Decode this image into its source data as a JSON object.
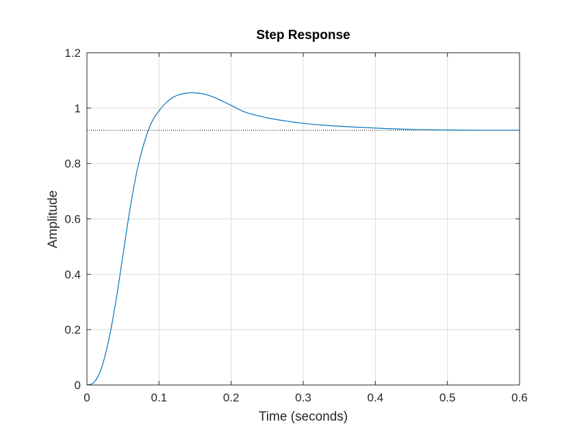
{
  "chart_data": {
    "type": "line",
    "title": "Step Response",
    "xlabel": "Time (seconds)",
    "ylabel": "Amplitude",
    "xlim": [
      0,
      0.6
    ],
    "ylim": [
      0,
      1.2
    ],
    "xticks": [
      0,
      0.1,
      0.2,
      0.3,
      0.4,
      0.5,
      0.6
    ],
    "xtick_labels": [
      "0",
      "0.1",
      "0.2",
      "0.3",
      "0.4",
      "0.5",
      "0.6"
    ],
    "yticks": [
      0,
      0.2,
      0.4,
      0.6,
      0.8,
      1.0,
      1.2
    ],
    "ytick_labels": [
      "0",
      "0.2",
      "0.4",
      "0.6",
      "0.8",
      "1",
      "1.2"
    ],
    "grid": true,
    "line_color": "#0072BD",
    "reference_line": {
      "y": 0.92,
      "style": "dotted",
      "color": "#000000"
    },
    "series": [
      {
        "x": [
          0,
          0.01,
          0.02,
          0.03,
          0.04,
          0.05,
          0.06,
          0.07,
          0.08,
          0.09,
          0.1,
          0.11,
          0.12,
          0.13,
          0.14,
          0.15,
          0.16,
          0.17,
          0.18,
          0.2,
          0.22,
          0.25,
          0.28,
          0.3,
          0.33,
          0.36,
          0.4,
          0.45,
          0.5,
          0.55,
          0.6
        ],
        "values": [
          0,
          0.01,
          0.06,
          0.16,
          0.3,
          0.47,
          0.64,
          0.78,
          0.88,
          0.95,
          0.99,
          1.02,
          1.04,
          1.05,
          1.055,
          1.055,
          1.052,
          1.045,
          1.035,
          1.01,
          0.985,
          0.965,
          0.952,
          0.945,
          0.938,
          0.933,
          0.928,
          0.923,
          0.921,
          0.92,
          0.92
        ]
      }
    ]
  }
}
